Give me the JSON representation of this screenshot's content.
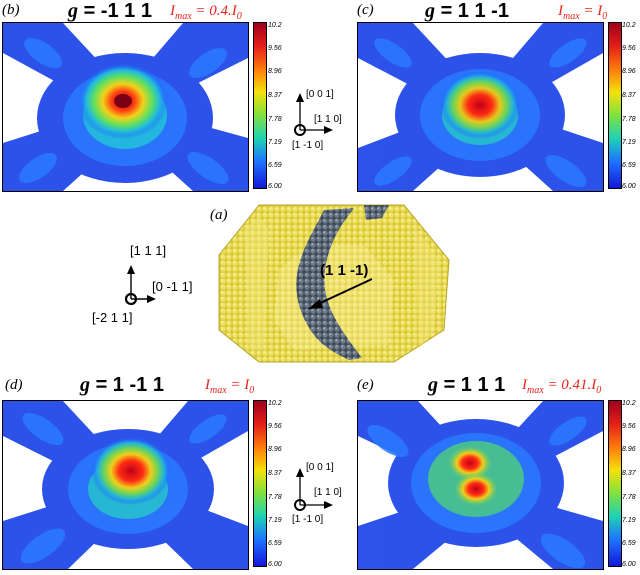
{
  "panels": {
    "b": {
      "letter": "(b)",
      "g_symbol": "g",
      "g_value": "= -1 1 1",
      "imax_main": "I",
      "imax_sub": "max",
      "imax_eq": " = 0.4.I",
      "imax_tail": "0"
    },
    "c": {
      "letter": "(c)",
      "g_symbol": "g",
      "g_value": "= 1 1 -1",
      "imax_main": "I",
      "imax_sub": "max",
      "imax_eq": " = I",
      "imax_tail": "0"
    },
    "a": {
      "letter": "(a)",
      "plane_label": "(1 1 -1)"
    },
    "d": {
      "letter": "(d)",
      "g_symbol": "g",
      "g_value": "= 1 -1 1",
      "imax_main": "I",
      "imax_sub": "max",
      "imax_eq": " = I",
      "imax_tail": "0"
    },
    "e": {
      "letter": "(e)",
      "g_symbol": "g",
      "g_value": "= 1 1 1",
      "imax_main": "I",
      "imax_sub": "max",
      "imax_eq": " = 0.41.I",
      "imax_tail": "0"
    }
  },
  "colorbar_ticks": [
    "10.2",
    "9.56",
    "8.96",
    "8.37",
    "7.78",
    "7.19",
    "6.59",
    "6.00"
  ],
  "axes_small": {
    "up": "[0 0 1]",
    "right": "[1 1 0]",
    "out": "[1 -1 0]"
  },
  "axes_crystal": {
    "up": "[1 1 1]",
    "right": "[0 -1 1]",
    "out": "[-2 1 1]"
  },
  "colors": {
    "imax_text": "#e8231b",
    "crystal_yellow": "#e8d84a",
    "defect_gray": "#5d6a78"
  }
}
